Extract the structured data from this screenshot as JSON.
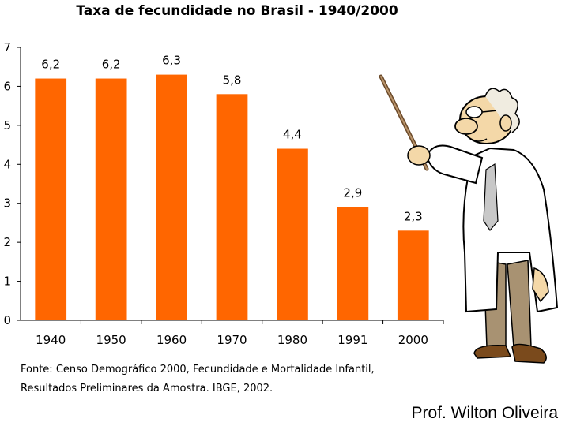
{
  "chart_data": {
    "type": "bar",
    "title": "Taxa de fecundidade no Brasil - 1940/2000",
    "categories": [
      "1940",
      "1950",
      "1960",
      "1970",
      "1980",
      "1991",
      "2000"
    ],
    "values": [
      6.2,
      6.2,
      6.3,
      5.8,
      4.4,
      2.9,
      2.3
    ],
    "data_labels": [
      "6,2",
      "6,2",
      "6,3",
      "5,8",
      "4,4",
      "2,9",
      "2,3"
    ],
    "yticks": [
      "0",
      "1",
      "2",
      "3",
      "4",
      "5",
      "6",
      "7"
    ],
    "ylim": [
      0,
      7
    ],
    "bar_color": "#ff6600",
    "grid": false,
    "xlabel": "",
    "ylabel": ""
  },
  "source": {
    "line1": "Fonte: Censo Demográfico 2000, Fecundidade e Mortalidade Infantil,",
    "line2": "Resultados Preliminares da Amostra. IBGE, 2002."
  },
  "credit": "Prof. Wilton Oliveira",
  "illustration": {
    "icon": "professor-with-pointer-icon"
  }
}
